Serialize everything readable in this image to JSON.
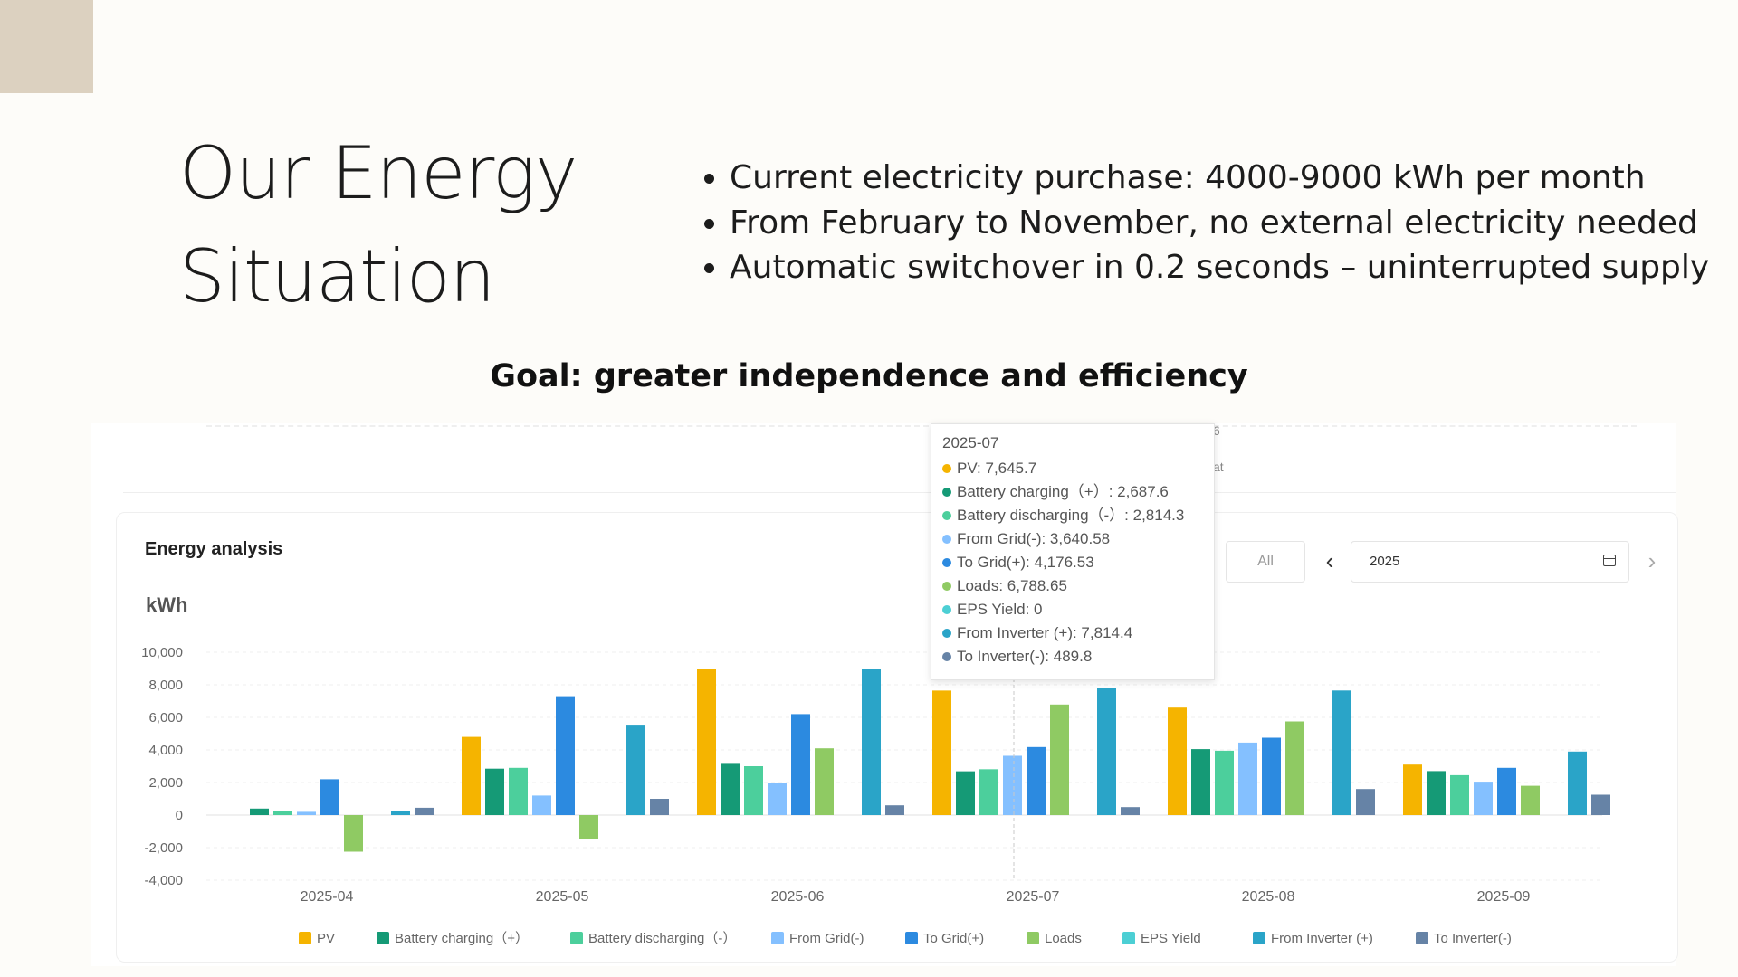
{
  "slide": {
    "title": "Our Energy Situation",
    "bullets": [
      "Current electricity purchase: 4000-9000 kWh per month",
      "From February to November, no external electricity needed",
      "Automatic switchover in 0.2 seconds – uninterrupted supply"
    ],
    "goal": "Goal: greater independence and efficiency",
    "accent_color": "#dcd1c0"
  },
  "app": {
    "card_title": "Energy analysis",
    "unit": "kWh",
    "range_button": "All",
    "prev_icon": "chevron-left-icon",
    "next_icon": "chevron-right-icon",
    "calendar_icon": "calendar-icon",
    "date_value": "2025",
    "prev_label": "‹",
    "next_label": "›",
    "peek_text_1": "6",
    "peek_text_2": "at"
  },
  "tooltip": {
    "title": "2025-07",
    "rows": [
      {
        "label": "PV: 7,645.7",
        "color": "#f5b400"
      },
      {
        "label": "Battery charging（+）: 2,687.6",
        "color": "#159a76"
      },
      {
        "label": "Battery discharging（-）: 2,814.3",
        "color": "#4ccf9c"
      },
      {
        "label": "From Grid(-): 3,640.58",
        "color": "#84c0ff"
      },
      {
        "label": "To Grid(+): 4,176.53",
        "color": "#2c8ae0"
      },
      {
        "label": "Loads: 6,788.65",
        "color": "#8fca63"
      },
      {
        "label": "EPS Yield: 0",
        "color": "#4ccfd4"
      },
      {
        "label": "From Inverter (+): 7,814.4",
        "color": "#2aa4c8"
      },
      {
        "label": "To Inverter(-): 489.8",
        "color": "#6683a6"
      }
    ]
  },
  "chart_data": {
    "type": "bar",
    "ylabel": "kWh",
    "ylim": [
      -4000,
      10000
    ],
    "yticks": [
      "10,000",
      "8,000",
      "6,000",
      "4,000",
      "2,000",
      "0",
      "-2,000",
      "-4,000"
    ],
    "categories": [
      "2025-04",
      "2025-05",
      "2025-06",
      "2025-07",
      "2025-08",
      "2025-09"
    ],
    "legend_position": "bottom",
    "series": [
      {
        "name": "PV",
        "color": "#f5b400",
        "values": [
          0,
          4800,
          9000,
          7645.7,
          6600,
          3100
        ]
      },
      {
        "name": "Battery charging（+）",
        "color": "#159a76",
        "values": [
          400,
          2850,
          3200,
          2687.6,
          4050,
          2700
        ]
      },
      {
        "name": "Battery discharging（-）",
        "color": "#4ccf9c",
        "values": [
          250,
          2900,
          3000,
          2814.3,
          3950,
          2450
        ]
      },
      {
        "name": "From Grid(-)",
        "color": "#84c0ff",
        "values": [
          200,
          1200,
          2000,
          3640.58,
          4450,
          2050
        ]
      },
      {
        "name": "To Grid(+)",
        "color": "#2c8ae0",
        "values": [
          2200,
          7300,
          6200,
          4176.53,
          4750,
          2900
        ]
      },
      {
        "name": "Loads",
        "color": "#8fca63",
        "values": [
          -2250,
          -1500,
          4100,
          6788.65,
          5750,
          1800
        ]
      },
      {
        "name": "EPS Yield",
        "color": "#4ccfd4",
        "values": [
          0,
          0,
          0,
          0,
          0,
          0
        ]
      },
      {
        "name": "From Inverter (+)",
        "color": "#2aa4c8",
        "values": [
          250,
          5550,
          8950,
          7814.4,
          7650,
          3900
        ]
      },
      {
        "name": "To Inverter(-)",
        "color": "#6683a6",
        "values": [
          450,
          1000,
          600,
          489.8,
          1600,
          1250
        ]
      }
    ]
  }
}
